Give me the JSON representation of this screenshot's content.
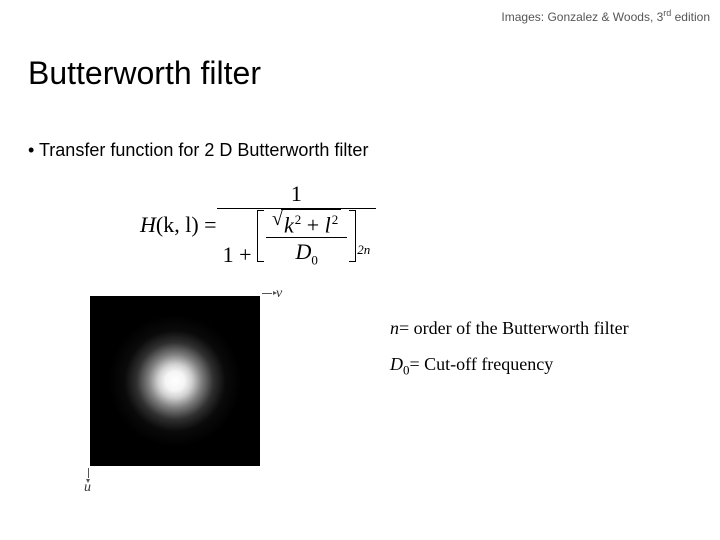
{
  "attribution": {
    "prefix": "Images: Gonzalez & Woods, 3",
    "sup": "rd",
    "suffix": " edition"
  },
  "title": "Butterworth filter",
  "bullet": "• Transfer function for 2 D Butterworth filter",
  "formula": {
    "lhs_var": "H",
    "lhs_args": "(k, l) = ",
    "numerator": "1",
    "one_plus": "1 + ",
    "sqrt_k": "k",
    "sqrt_plus": " + ",
    "sqrt_l": "l",
    "sq_exp": "2",
    "D": "D",
    "D_sub": "0",
    "outer_exp": "2n"
  },
  "legend": {
    "n_var": "n",
    "n_desc": "= order of the Butterworth filter",
    "d_var": "D",
    "d_sub": "0",
    "d_desc": "= Cut-off frequency"
  },
  "axes": {
    "u": "u",
    "v": "v"
  },
  "image": {
    "description": "2D Butterworth lowpass magnitude: bright center fading to black",
    "gradient_stops": [
      {
        "pct": 0,
        "color": "#ffffff"
      },
      {
        "pct": 8,
        "color": "#f5f5f5"
      },
      {
        "pct": 14,
        "color": "#d0d0d0"
      },
      {
        "pct": 22,
        "color": "#808080"
      },
      {
        "pct": 32,
        "color": "#303030"
      },
      {
        "pct": 42,
        "color": "#0a0a0a"
      },
      {
        "pct": 55,
        "color": "#000000"
      }
    ]
  },
  "colors": {
    "background": "#ffffff",
    "text": "#000000",
    "attribution": "#555555",
    "axis": "#555555"
  }
}
